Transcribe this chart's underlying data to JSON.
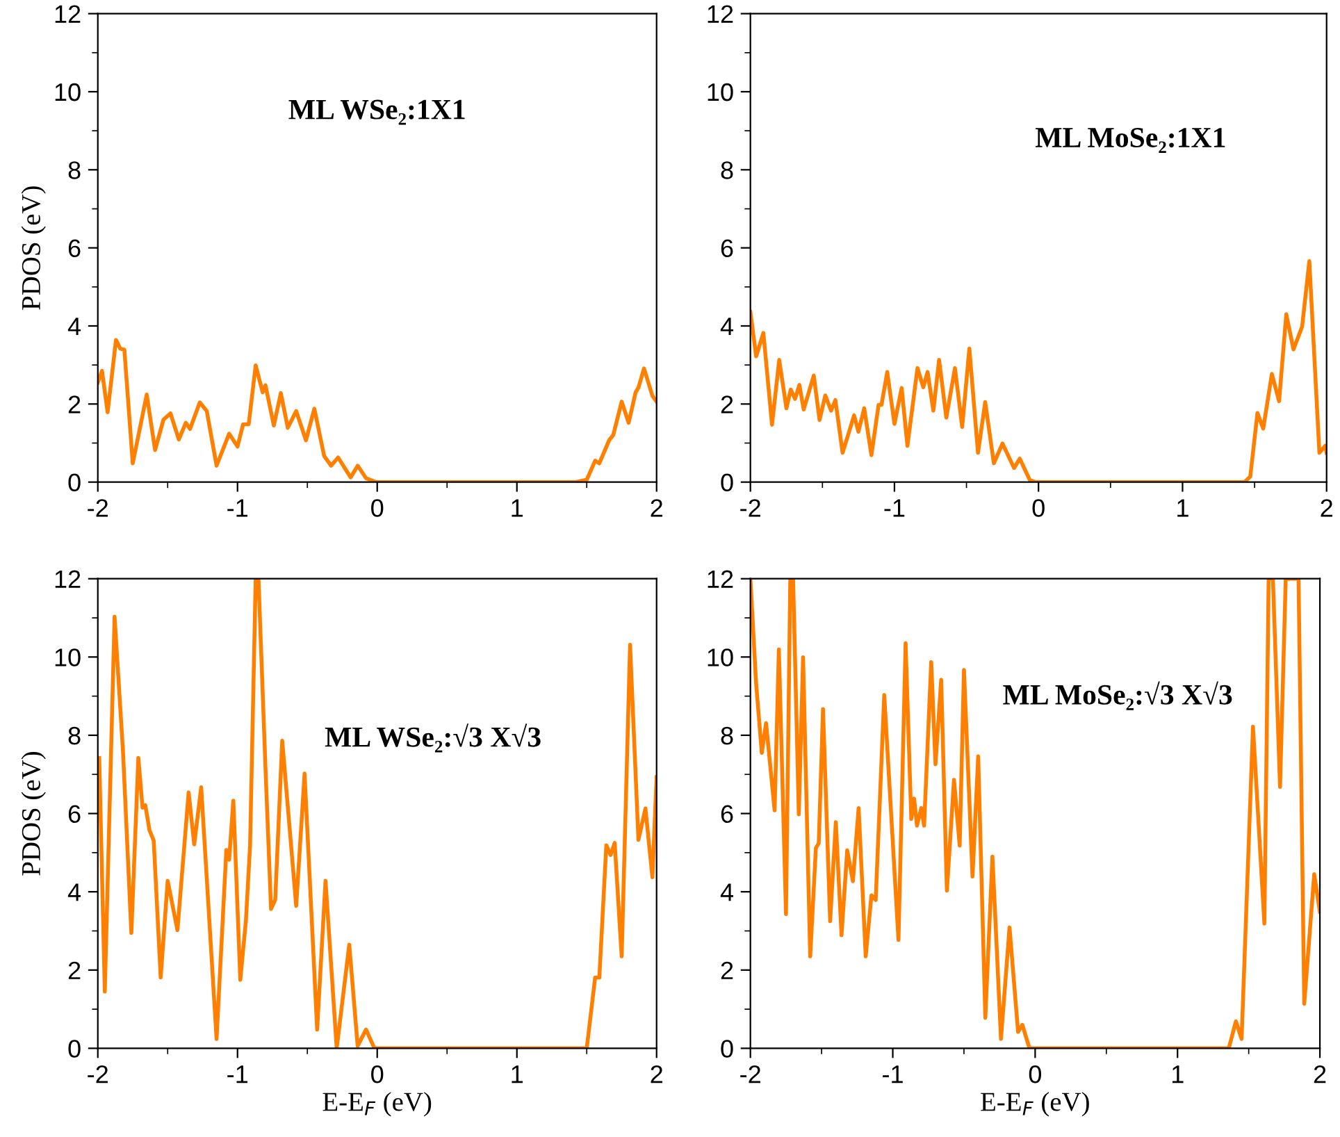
{
  "chart_data": [
    {
      "type": "line",
      "ylabel": "PDOS (eV)",
      "annotations": [
        "ML WSe₂:1X1"
      ],
      "xlim": [
        -2,
        2
      ],
      "xticks": [
        -2,
        -1,
        0,
        1,
        2
      ],
      "ylim": [
        0,
        12
      ],
      "yticks": [
        0,
        2,
        4,
        6,
        8,
        10,
        12
      ],
      "grid": false,
      "legend": false,
      "marker": "none",
      "line_style": "solid",
      "x": [
        -2.0,
        -1.97,
        -1.93,
        -1.87,
        -1.84,
        -1.81,
        -1.75,
        -1.65,
        -1.59,
        -1.53,
        -1.48,
        -1.42,
        -1.37,
        -1.34,
        -1.27,
        -1.22,
        -1.15,
        -1.06,
        -1.0,
        -0.96,
        -0.92,
        -0.87,
        -0.82,
        -0.8,
        -0.74,
        -0.69,
        -0.64,
        -0.58,
        -0.51,
        -0.45,
        -0.38,
        -0.33,
        -0.28,
        -0.19,
        -0.14,
        -0.08,
        -0.01,
        1.42,
        1.5,
        1.56,
        1.59,
        1.66,
        1.69,
        1.75,
        1.8,
        1.85,
        1.87,
        1.91,
        1.97,
        2.0
      ],
      "series": [
        {
          "color": "#ff8000",
          "values": [
            2.55,
            2.85,
            1.79,
            3.64,
            3.42,
            3.39,
            0.48,
            2.24,
            0.82,
            1.6,
            1.76,
            1.09,
            1.52,
            1.36,
            2.04,
            1.82,
            0.42,
            1.24,
            0.91,
            1.48,
            1.48,
            2.99,
            2.3,
            2.48,
            1.45,
            2.28,
            1.39,
            1.82,
            1.07,
            1.88,
            0.67,
            0.42,
            0.63,
            0.12,
            0.42,
            0.1,
            0,
            0,
            0.06,
            0.55,
            0.48,
            1.07,
            1.21,
            2.06,
            1.52,
            2.3,
            2.42,
            2.91,
            2.21,
            2.06
          ]
        }
      ]
    },
    {
      "type": "line",
      "annotations": [
        "ML MoSe₂:1X1"
      ],
      "xlim": [
        -2,
        2
      ],
      "xticks": [
        -2,
        -1,
        0,
        1,
        2
      ],
      "ylim": [
        0,
        12
      ],
      "yticks": [
        0,
        2,
        4,
        6,
        8,
        10,
        12
      ],
      "grid": false,
      "legend": false,
      "marker": "none",
      "line_style": "solid",
      "x": [
        -2.0,
        -1.96,
        -1.91,
        -1.85,
        -1.8,
        -1.75,
        -1.72,
        -1.69,
        -1.66,
        -1.63,
        -1.56,
        -1.52,
        -1.48,
        -1.44,
        -1.41,
        -1.36,
        -1.28,
        -1.25,
        -1.21,
        -1.16,
        -1.11,
        -1.09,
        -1.05,
        -1.0,
        -0.95,
        -0.91,
        -0.84,
        -0.8,
        -0.77,
        -0.73,
        -0.69,
        -0.64,
        -0.58,
        -0.53,
        -0.48,
        -0.42,
        -0.37,
        -0.31,
        -0.25,
        -0.17,
        -0.13,
        -0.06,
        -0.02,
        1.43,
        1.47,
        1.52,
        1.56,
        1.62,
        1.67,
        1.72,
        1.77,
        1.83,
        1.88,
        1.95,
        1.99,
        2.0
      ],
      "series": [
        {
          "color": "#ff8000",
          "values": [
            4.36,
            3.22,
            3.82,
            1.47,
            3.13,
            1.89,
            2.37,
            2.13,
            2.49,
            1.86,
            2.73,
            1.59,
            2.22,
            1.83,
            2.1,
            0.75,
            1.71,
            1.29,
            1.89,
            0.69,
            1.98,
            1.98,
            2.82,
            1.49,
            2.41,
            0.93,
            2.92,
            2.43,
            2.82,
            1.83,
            3.13,
            1.65,
            2.92,
            1.41,
            3.42,
            0.75,
            2.05,
            0.48,
            0.99,
            0.36,
            0.6,
            0.05,
            0,
            0,
            0.14,
            1.77,
            1.37,
            2.77,
            2.07,
            4.3,
            3.4,
            3.98,
            5.66,
            0.75,
            0.93,
            0.75
          ]
        }
      ]
    },
    {
      "type": "line",
      "ylabel": "PDOS (eV)",
      "xlabel": "E-E$_{F}$ (eV)",
      "annotations": [
        "ML WSe₂:√3 X√3"
      ],
      "xlim": [
        -2,
        2
      ],
      "xticks": [
        -2,
        -1,
        0,
        1,
        2
      ],
      "ylim": [
        0,
        12
      ],
      "yticks": [
        0,
        2,
        4,
        6,
        8,
        10,
        12
      ],
      "grid": false,
      "legend": false,
      "marker": "none",
      "line_style": "solid",
      "x": [
        -1.99,
        -1.95,
        -1.88,
        -1.82,
        -1.76,
        -1.71,
        -1.68,
        -1.66,
        -1.63,
        -1.6,
        -1.55,
        -1.5,
        -1.43,
        -1.35,
        -1.31,
        -1.26,
        -1.15,
        -1.08,
        -1.06,
        -1.03,
        -0.98,
        -0.94,
        -0.91,
        -0.87,
        -0.85,
        -0.8,
        -0.76,
        -0.73,
        -0.68,
        -0.58,
        -0.52,
        -0.43,
        -0.37,
        -0.29,
        -0.2,
        -0.14,
        -0.08,
        -0.02,
        1.5,
        1.56,
        1.59,
        1.64,
        1.67,
        1.7,
        1.75,
        1.81,
        1.87,
        1.92,
        1.97,
        2.0
      ],
      "series": [
        {
          "color": "#ff8000",
          "values": [
            7.42,
            1.45,
            11.03,
            7.6,
            2.95,
            7.42,
            6.15,
            6.21,
            5.57,
            5.31,
            1.81,
            4.28,
            3.02,
            6.54,
            5.21,
            6.67,
            0.24,
            5.07,
            4.82,
            6.33,
            1.75,
            3.26,
            5.19,
            12,
            12,
            7.18,
            3.56,
            3.8,
            7.86,
            3.64,
            7.02,
            0.48,
            4.28,
            0,
            2.65,
            0.06,
            0.48,
            0,
            0,
            1.81,
            1.81,
            5.19,
            4.94,
            5.25,
            2.35,
            10.31,
            5.33,
            6.13,
            4.37,
            6.93
          ]
        }
      ]
    },
    {
      "type": "line",
      "xlabel": "E-E$_{F}$ (eV)",
      "annotations": [
        "ML MoSe₂:√3 X√3"
      ],
      "xlim": [
        -2,
        2
      ],
      "xticks": [
        -2,
        -1,
        0,
        1,
        2
      ],
      "ylim": [
        0,
        12
      ],
      "yticks": [
        0,
        2,
        4,
        6,
        8,
        10,
        12
      ],
      "grid": false,
      "legend": false,
      "marker": "none",
      "line_style": "solid",
      "x": [
        -2.0,
        -1.96,
        -1.92,
        -1.89,
        -1.83,
        -1.8,
        -1.75,
        -1.72,
        -1.7,
        -1.66,
        -1.63,
        -1.58,
        -1.54,
        -1.52,
        -1.49,
        -1.44,
        -1.4,
        -1.36,
        -1.32,
        -1.28,
        -1.24,
        -1.19,
        -1.15,
        -1.12,
        -1.06,
        -0.96,
        -0.91,
        -0.87,
        -0.85,
        -0.83,
        -0.8,
        -0.78,
        -0.73,
        -0.7,
        -0.66,
        -0.62,
        -0.57,
        -0.53,
        -0.5,
        -0.44,
        -0.4,
        -0.35,
        -0.3,
        -0.24,
        -0.18,
        -0.12,
        -0.09,
        -0.04,
        1.36,
        1.41,
        1.45,
        1.53,
        1.61,
        1.64,
        1.67,
        1.72,
        1.76,
        1.85,
        1.89,
        1.96,
        2.0
      ],
      "series": [
        {
          "color": "#ff8000",
          "values": [
            12,
            9.33,
            7.55,
            8.31,
            6.08,
            10.19,
            3.43,
            12,
            12,
            5.98,
            9.99,
            2.35,
            5.12,
            5.24,
            8.67,
            3.25,
            5.78,
            2.89,
            5.06,
            4.27,
            6.14,
            2.35,
            3.91,
            3.79,
            9.03,
            2.77,
            10.35,
            5.86,
            6.38,
            5.69,
            6.14,
            5.69,
            9.87,
            7.26,
            9.42,
            4.03,
            6.86,
            5.18,
            9.67,
            4.39,
            7.46,
            0.78,
            4.9,
            0.24,
            3.09,
            0.42,
            0.6,
            0,
            0,
            0.69,
            0.24,
            8.22,
            3.19,
            12,
            12,
            6.68,
            12,
            12,
            1.14,
            4.45,
            3.49
          ]
        }
      ]
    }
  ]
}
